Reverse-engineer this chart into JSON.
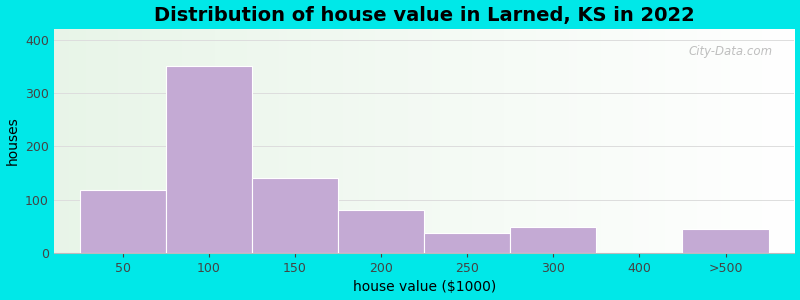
{
  "title": "Distribution of house value in Larned, KS in 2022",
  "xlabel": "house value ($1000)",
  "ylabel": "houses",
  "tick_labels": [
    "50",
    "100",
    "150",
    "200",
    "250",
    "300",
    "400",
    ">500"
  ],
  "tick_positions": [
    0,
    1,
    2,
    3,
    4,
    5,
    6,
    7
  ],
  "bar_lefts": [
    0,
    1,
    2,
    3,
    4,
    5,
    6.5,
    7
  ],
  "bar_widths": [
    1,
    1,
    1,
    1,
    1,
    1,
    0.5,
    1
  ],
  "bar_heights": [
    118,
    350,
    140,
    80,
    37,
    48,
    0,
    45
  ],
  "bar_color": "#c4aad4",
  "bar_edgecolor": "#ffffff",
  "background_outer": "#00e8e8",
  "ylim": [
    0,
    420
  ],
  "yticks": [
    0,
    100,
    200,
    300,
    400
  ],
  "title_fontsize": 14,
  "axis_label_fontsize": 10,
  "tick_fontsize": 9,
  "watermark_text": "City-Data.com",
  "grid_color": "#dddddd",
  "bg_left_color": "#e8f5e8",
  "bg_right_color": "#f5fff5"
}
